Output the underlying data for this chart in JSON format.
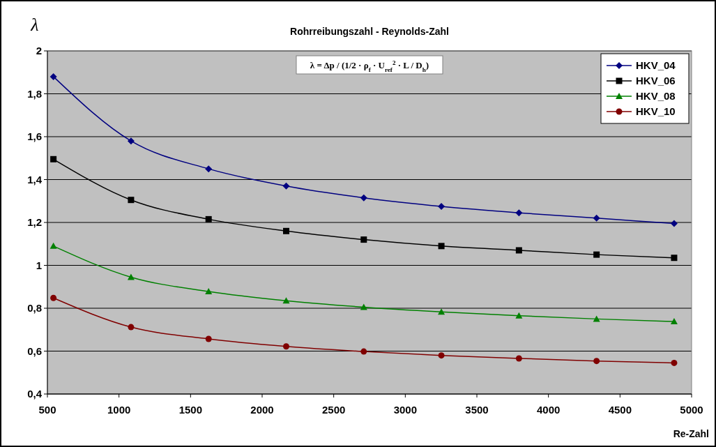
{
  "chart_data": {
    "type": "line",
    "title": "Rohrreibungszahl - Reynolds-Zahl",
    "xlabel": "Re-Zahl",
    "ylabel": "λ",
    "annotations": [
      "λ = Δp / (1/2 · ρ$_{f}$ · U$_{ref}$$^{2}$ · L / D$_{h}$)"
    ],
    "x": [
      542,
      1084,
      1626,
      2168,
      2710,
      3252,
      3794,
      4336,
      4878
    ],
    "series": [
      {
        "name": "HKV_04",
        "color": "#000080",
        "marker": "diamond",
        "values": [
          1.88,
          1.58,
          1.45,
          1.37,
          1.315,
          1.275,
          1.245,
          1.22,
          1.195
        ]
      },
      {
        "name": "HKV_06",
        "color": "#000000",
        "marker": "square",
        "values": [
          1.495,
          1.305,
          1.215,
          1.16,
          1.12,
          1.09,
          1.07,
          1.05,
          1.035
        ]
      },
      {
        "name": "HKV_08",
        "color": "#008000",
        "marker": "triangle",
        "values": [
          1.09,
          0.945,
          0.878,
          0.835,
          0.805,
          0.783,
          0.765,
          0.75,
          0.738
        ]
      },
      {
        "name": "HKV_10",
        "color": "#800000",
        "marker": "circle",
        "values": [
          0.848,
          0.712,
          0.657,
          0.622,
          0.598,
          0.58,
          0.566,
          0.554,
          0.545
        ]
      }
    ],
    "xlim": [
      500,
      5000
    ],
    "xticks": [
      500,
      1000,
      1500,
      2000,
      2500,
      3000,
      3500,
      4000,
      4500,
      5000
    ],
    "ylim": [
      0.4,
      2
    ],
    "yticks": [
      {
        "value": 0.4,
        "label": "0,4"
      },
      {
        "value": 0.6,
        "label": "0,6"
      },
      {
        "value": 0.8,
        "label": "0,8"
      },
      1,
      {
        "value": 1.2,
        "label": "1,2"
      },
      {
        "value": 1.4,
        "label": "1,4"
      },
      {
        "value": 1.6,
        "label": "1,6"
      },
      {
        "value": 1.8,
        "label": "1,8"
      },
      2
    ],
    "grid": "y",
    "legend": "top right",
    "line_style": "solid"
  }
}
